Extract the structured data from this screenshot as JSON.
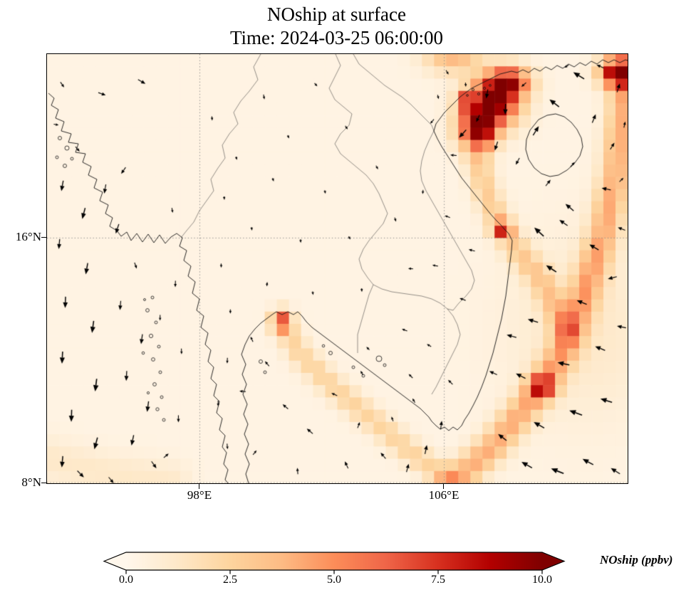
{
  "title": {
    "line1": "NOship at surface",
    "line2": "Time: 2024-03-25 06:00:00"
  },
  "axes": {
    "y_ticks": [
      {
        "label": "16°N",
        "lat": 16
      },
      {
        "label": "8°N",
        "lat": 8
      }
    ],
    "x_ticks": [
      {
        "label": "98°E",
        "lon": 98
      },
      {
        "label": "106°E",
        "lon": 106
      }
    ]
  },
  "colorbar": {
    "label": "NOship (ppbv)",
    "ticks": [
      "0.0",
      "2.5",
      "5.0",
      "7.5",
      "10.0"
    ],
    "tick_values": [
      0.0,
      2.5,
      5.0,
      7.5,
      10.0
    ],
    "vmin": 0,
    "vmax": 10,
    "extend": "both"
  },
  "chart_data": {
    "type": "heatmap",
    "title": "NOship at surface",
    "subtitle": "Time: 2024-03-25 06:00:00",
    "variable": "NOship",
    "units": "ppbv",
    "extent": {
      "lon_min": 93,
      "lon_max": 112,
      "lat_min": 8,
      "lat_max": 22
    },
    "vmin": 0,
    "vmax": 10,
    "grid_cells": {
      "nx": 48,
      "ny": 35
    },
    "gridlines": {
      "lon": [
        98,
        106
      ],
      "lat": [
        8,
        16
      ],
      "style": "dotted",
      "color": "#8a8a8a"
    },
    "colormap": {
      "name": "OrRd",
      "stops": [
        [
          0,
          "#fff7ec"
        ],
        [
          0.125,
          "#fee8c8"
        ],
        [
          0.25,
          "#fdd49e"
        ],
        [
          0.375,
          "#fdbb84"
        ],
        [
          0.5,
          "#fc8d59"
        ],
        [
          0.625,
          "#ef6548"
        ],
        [
          0.75,
          "#d7301f"
        ],
        [
          0.875,
          "#b30000"
        ],
        [
          1,
          "#7f0000"
        ]
      ]
    },
    "field": {
      "base": 0.3,
      "hotspots": [
        {
          "name": "gulf-of-tonkin-plume-core",
          "lon": 107.55,
          "lat": 20.35,
          "rx": 0.85,
          "ry": 0.75,
          "amp": 9.8
        },
        {
          "name": "gulf-of-tonkin-plume-south",
          "lon": 107.0,
          "lat": 19.5,
          "rx": 0.6,
          "ry": 0.6,
          "amp": 6.5
        },
        {
          "name": "gulf-of-tonkin-plume-north",
          "lon": 108.1,
          "lat": 21.1,
          "rx": 0.7,
          "ry": 0.5,
          "amp": 7.5
        },
        {
          "name": "tonkin-top-west-flank",
          "lon": 106.3,
          "lat": 21.9,
          "rx": 0.9,
          "ry": 0.5,
          "amp": 3.5
        },
        {
          "name": "haiphong-port",
          "lon": 106.62,
          "lat": 20.42,
          "rx": 0.22,
          "ry": 0.18,
          "amp": 9.5
        },
        {
          "name": "northeast-corner-plume",
          "lon": 111.7,
          "lat": 21.4,
          "rx": 0.6,
          "ry": 0.45,
          "amp": 8.5
        },
        {
          "name": "da-nang-coastal-spot",
          "lon": 107.9,
          "lat": 16.32,
          "rx": 0.3,
          "ry": 0.22,
          "amp": 7.0
        },
        {
          "name": "bangkok-port-spot",
          "lon": 100.68,
          "lat": 13.3,
          "rx": 0.3,
          "ry": 0.35,
          "amp": 5.0
        },
        {
          "name": "vung-tau-segment",
          "lon": 109.2,
          "lat": 11.15,
          "rx": 0.45,
          "ry": 0.35,
          "amp": 5.5
        },
        {
          "name": "south-china-sea-broad",
          "lon": 110.6,
          "lat": 13.0,
          "rx": 2.5,
          "ry": 3.0,
          "amp": 0.9
        }
      ],
      "shipping_lanes": [
        {
          "name": "singapore-hongkong-lane",
          "amp": 3.8,
          "width": 0.5,
          "points": [
            [
              106.3,
              8.0
            ],
            [
              107.6,
              9.2
            ],
            [
              109.0,
              10.9
            ],
            [
              109.9,
              12.3
            ],
            [
              110.6,
              14.2
            ],
            [
              111.2,
              16.1
            ],
            [
              111.6,
              18.0
            ],
            [
              111.85,
              20.2
            ],
            [
              111.9,
              21.4
            ]
          ]
        },
        {
          "name": "tonkin-approach-lane",
          "amp": 2.6,
          "width": 0.42,
          "points": [
            [
              110.0,
              13.0
            ],
            [
              109.2,
              14.6
            ],
            [
              108.4,
              15.6
            ],
            [
              107.9,
              16.3
            ],
            [
              107.4,
              17.4
            ],
            [
              107.1,
              18.5
            ],
            [
              107.35,
              19.4
            ]
          ]
        },
        {
          "name": "bangkok-gulf-lane",
          "amp": 2.2,
          "width": 0.4,
          "points": [
            [
              100.7,
              13.2
            ],
            [
              101.3,
              12.2
            ],
            [
              102.3,
              11.2
            ],
            [
              103.5,
              10.2
            ],
            [
              104.8,
              9.1
            ],
            [
              106.0,
              8.2
            ]
          ]
        },
        {
          "name": "andaman-south-lane",
          "amp": 0.9,
          "width": 0.7,
          "points": [
            [
              93.0,
              8.8
            ],
            [
              95.0,
              8.3
            ],
            [
              97.0,
              8.0
            ]
          ]
        }
      ]
    },
    "wind": {
      "units": "direction degrees CCW from east, length px",
      "arrows": [
        [
          93.5,
          21.0,
          -55,
          9
        ],
        [
          94.8,
          20.7,
          -20,
          11
        ],
        [
          96.1,
          21.1,
          -30,
          12
        ],
        [
          93.3,
          19.7,
          -10,
          7
        ],
        [
          94.0,
          18.9,
          -50,
          9
        ],
        [
          95.5,
          18.2,
          -125,
          11
        ],
        [
          97.1,
          16.9,
          -80,
          7
        ],
        [
          94.9,
          17.6,
          -100,
          13
        ],
        [
          93.5,
          17.7,
          -100,
          15
        ],
        [
          94.2,
          16.8,
          -105,
          16
        ],
        [
          93.4,
          15.8,
          -95,
          14
        ],
        [
          94.3,
          15.0,
          -100,
          16
        ],
        [
          93.6,
          13.9,
          -92,
          16
        ],
        [
          94.5,
          13.1,
          -98,
          17
        ],
        [
          93.5,
          12.1,
          -93,
          17
        ],
        [
          94.6,
          11.2,
          -97,
          18
        ],
        [
          93.8,
          10.2,
          -92,
          17
        ],
        [
          94.6,
          9.3,
          -105,
          17
        ],
        [
          93.5,
          8.7,
          -95,
          16
        ],
        [
          95.3,
          16.3,
          -108,
          14
        ],
        [
          95.9,
          15.1,
          -70,
          9
        ],
        [
          95.4,
          13.8,
          -95,
          13
        ],
        [
          96.1,
          12.7,
          -98,
          14
        ],
        [
          95.6,
          11.5,
          -93,
          14
        ],
        [
          96.3,
          10.5,
          -98,
          15
        ],
        [
          95.8,
          9.4,
          -102,
          15
        ],
        [
          96.5,
          8.6,
          -55,
          12
        ],
        [
          97.2,
          14.5,
          -92,
          9
        ],
        [
          97.4,
          12.3,
          -88,
          8
        ],
        [
          97.3,
          10.1,
          -90,
          10
        ],
        [
          96.7,
          13.4,
          -90,
          8
        ],
        [
          94.1,
          8.3,
          -45,
          13
        ],
        [
          95.1,
          8.1,
          -50,
          11
        ],
        [
          96.9,
          8.9,
          40,
          9
        ],
        [
          98.4,
          19.9,
          -85,
          6
        ],
        [
          100.1,
          20.6,
          -80,
          7
        ],
        [
          101.8,
          21.0,
          -50,
          6
        ],
        [
          99.2,
          18.6,
          -75,
          5
        ],
        [
          100.9,
          19.3,
          -65,
          5
        ],
        [
          102.8,
          19.6,
          -55,
          6
        ],
        [
          98.8,
          17.3,
          -85,
          5
        ],
        [
          100.4,
          17.9,
          -70,
          5
        ],
        [
          102.1,
          17.5,
          -75,
          5
        ],
        [
          103.8,
          18.3,
          -60,
          6
        ],
        [
          99.7,
          16.3,
          -80,
          5
        ],
        [
          101.3,
          15.9,
          -85,
          5
        ],
        [
          102.9,
          16.0,
          -60,
          5
        ],
        [
          104.4,
          16.6,
          -70,
          6
        ],
        [
          98.7,
          15.1,
          -88,
          6
        ],
        [
          100.2,
          14.5,
          85,
          6
        ],
        [
          101.7,
          14.2,
          -80,
          5
        ],
        [
          103.3,
          14.3,
          -85,
          5
        ],
        [
          104.9,
          15.0,
          175,
          7
        ],
        [
          104.7,
          13.0,
          160,
          8
        ],
        [
          103.5,
          12.4,
          135,
          6
        ],
        [
          99.0,
          13.6,
          -90,
          6
        ],
        [
          98.9,
          12.0,
          -92,
          8
        ],
        [
          98.6,
          10.6,
          -90,
          8
        ],
        [
          98.9,
          9.2,
          -85,
          8
        ],
        [
          105.6,
          19.8,
          -130,
          8
        ],
        [
          106.3,
          18.7,
          175,
          9
        ],
        [
          105.3,
          17.5,
          -95,
          6
        ],
        [
          106.1,
          16.7,
          160,
          8
        ],
        [
          106.9,
          15.6,
          165,
          9
        ],
        [
          105.7,
          15.1,
          170,
          8
        ],
        [
          106.6,
          14.0,
          160,
          9
        ],
        [
          105.5,
          12.5,
          150,
          7
        ],
        [
          106.2,
          11.3,
          135,
          9
        ],
        [
          105.0,
          10.7,
          120,
          7
        ],
        [
          104.3,
          10.1,
          110,
          7
        ],
        [
          99.7,
          12.7,
          115,
          8
        ],
        [
          100.2,
          11.9,
          130,
          9
        ],
        [
          99.4,
          11.0,
          175,
          9
        ],
        [
          100.8,
          10.5,
          140,
          10
        ],
        [
          101.6,
          9.7,
          140,
          11
        ],
        [
          102.4,
          10.9,
          155,
          9
        ],
        [
          103.2,
          9.9,
          70,
          9
        ],
        [
          104.0,
          8.9,
          130,
          11
        ],
        [
          102.8,
          8.6,
          115,
          11
        ],
        [
          101.2,
          8.4,
          95,
          9
        ],
        [
          99.8,
          9.0,
          50,
          8
        ],
        [
          104.8,
          8.5,
          75,
          12
        ],
        [
          105.4,
          9.1,
          78,
          13
        ],
        [
          105.9,
          9.9,
          82,
          12
        ],
        [
          104.9,
          11.5,
          135,
          8
        ],
        [
          103.3,
          11.6,
          120,
          7
        ],
        [
          108.7,
          8.6,
          150,
          17
        ],
        [
          109.7,
          8.4,
          158,
          19
        ],
        [
          110.7,
          8.7,
          152,
          17
        ],
        [
          111.6,
          8.4,
          148,
          15
        ],
        [
          107.9,
          9.5,
          142,
          15
        ],
        [
          109.1,
          9.9,
          150,
          17
        ],
        [
          110.3,
          10.3,
          160,
          19
        ],
        [
          111.3,
          10.7,
          163,
          17
        ],
        [
          108.5,
          11.5,
          153,
          15
        ],
        [
          109.9,
          11.9,
          168,
          17
        ],
        [
          111.1,
          12.4,
          158,
          15
        ],
        [
          111.8,
          13.1,
          168,
          13
        ],
        [
          108.9,
          13.3,
          163,
          15
        ],
        [
          110.5,
          13.9,
          158,
          15
        ],
        [
          111.5,
          14.7,
          195,
          13
        ],
        [
          109.5,
          15.0,
          147,
          17
        ],
        [
          110.9,
          15.7,
          150,
          15
        ],
        [
          111.8,
          16.3,
          158,
          11
        ],
        [
          109.1,
          16.2,
          137,
          18
        ],
        [
          110.1,
          17.0,
          140,
          15
        ],
        [
          111.3,
          17.6,
          168,
          13
        ],
        [
          108.2,
          12.8,
          165,
          14
        ],
        [
          107.6,
          11.6,
          155,
          12
        ],
        [
          109.9,
          16.5,
          145,
          14
        ],
        [
          106.1,
          21.4,
          -60,
          7
        ],
        [
          106.7,
          21.0,
          -85,
          6
        ],
        [
          107.4,
          20.7,
          -100,
          13
        ],
        [
          108.0,
          20.2,
          -92,
          15
        ],
        [
          107.1,
          19.9,
          -115,
          11
        ],
        [
          106.6,
          19.4,
          -132,
          15
        ],
        [
          107.7,
          19.0,
          -108,
          13
        ],
        [
          108.4,
          18.5,
          -118,
          11
        ],
        [
          109.0,
          19.5,
          58,
          15
        ],
        [
          109.6,
          20.4,
          142,
          17
        ],
        [
          110.4,
          21.3,
          148,
          18
        ],
        [
          111.1,
          21.6,
          155,
          11
        ],
        [
          111.7,
          20.9,
          72,
          13
        ],
        [
          110.9,
          19.9,
          68,
          13
        ],
        [
          111.5,
          19.0,
          58,
          11
        ],
        [
          110.2,
          18.4,
          48,
          9
        ],
        [
          109.4,
          17.8,
          52,
          11
        ],
        [
          108.6,
          21.0,
          -138,
          9
        ],
        [
          110.0,
          21.6,
          -148,
          7
        ],
        [
          111.9,
          19.7,
          78,
          9
        ],
        [
          111.8,
          17.9,
          44,
          8
        ],
        [
          105.8,
          20.6,
          -75,
          6
        ]
      ]
    }
  }
}
